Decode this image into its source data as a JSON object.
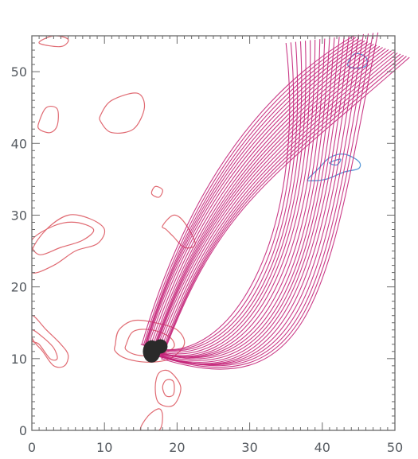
{
  "chart_data": {
    "type": "contour",
    "title": "",
    "xlabel": "",
    "ylabel": "",
    "xlim": [
      0,
      50
    ],
    "ylim": [
      0,
      55
    ],
    "grid": false,
    "x_ticks": [
      0,
      10,
      20,
      30,
      40,
      50
    ],
    "y_ticks": [
      0,
      10,
      20,
      30,
      40,
      50
    ],
    "colors": {
      "positive_contour": "#e06a72",
      "negative_contour": "#5a9ad8",
      "field_lines": "#c4267a",
      "footpoint": "#2a2a2a",
      "frame": "#6a6a6a"
    },
    "field_lines": {
      "count": 40,
      "footpoint": [
        16.5,
        11
      ],
      "bundle_a_apex": [
        35,
        54
      ],
      "bundle_b_apex": [
        52,
        52
      ],
      "crossing_near": [
        35,
        43
      ]
    },
    "positive_contours": [
      {
        "label": "left-lobe-outer",
        "points": [
          [
            0,
            25
          ],
          [
            2,
            28
          ],
          [
            5,
            30
          ],
          [
            8,
            29.5
          ],
          [
            10,
            28
          ],
          [
            9,
            26
          ],
          [
            6,
            25
          ],
          [
            3,
            23
          ],
          [
            0,
            22
          ]
        ]
      },
      {
        "label": "left-lobe-inner",
        "points": [
          [
            0,
            26.5
          ],
          [
            3,
            28.5
          ],
          [
            6,
            29
          ],
          [
            8.5,
            28
          ],
          [
            7,
            26.5
          ],
          [
            4,
            25.5
          ],
          [
            1,
            24.5
          ]
        ]
      },
      {
        "label": "small-patch-a",
        "points": [
          [
            1,
            43
          ],
          [
            2,
            45
          ],
          [
            3.5,
            44.8
          ],
          [
            3.5,
            42.5
          ],
          [
            2.5,
            41.5
          ],
          [
            1,
            42
          ]
        ]
      },
      {
        "label": "small-patch-b",
        "points": [
          [
            9.5,
            44
          ],
          [
            11,
            46
          ],
          [
            14.5,
            47
          ],
          [
            15.5,
            45
          ],
          [
            14,
            42
          ],
          [
            11,
            41.5
          ],
          [
            9.5,
            43
          ]
        ]
      },
      {
        "label": "small-patch-c",
        "points": [
          [
            16.5,
            33
          ],
          [
            17,
            34
          ],
          [
            18,
            33.5
          ],
          [
            17.5,
            32.5
          ]
        ]
      },
      {
        "label": "patch-d",
        "points": [
          [
            18,
            28.5
          ],
          [
            19.5,
            30
          ],
          [
            21,
            29
          ],
          [
            22.5,
            26
          ],
          [
            21,
            25.5
          ],
          [
            19.5,
            27
          ],
          [
            18.5,
            28
          ]
        ]
      },
      {
        "label": "lower-left-outer",
        "points": [
          [
            0,
            16
          ],
          [
            2,
            14
          ],
          [
            4,
            12
          ],
          [
            5,
            10.5
          ],
          [
            4.5,
            9
          ],
          [
            3,
            9
          ],
          [
            1.5,
            11
          ],
          [
            0,
            13
          ]
        ]
      },
      {
        "label": "lower-left-inner",
        "points": [
          [
            0,
            14
          ],
          [
            1.5,
            13
          ],
          [
            3,
            11.5
          ],
          [
            3.5,
            10
          ],
          [
            2.5,
            10
          ],
          [
            1,
            12
          ],
          [
            0,
            12.5
          ]
        ]
      },
      {
        "label": "source-ring-1",
        "points": [
          [
            11.5,
            12
          ],
          [
            12,
            14
          ],
          [
            14,
            15.3
          ],
          [
            17,
            15
          ],
          [
            20,
            14
          ],
          [
            21,
            12
          ],
          [
            19,
            10
          ],
          [
            16,
            9.5
          ],
          [
            13,
            10
          ],
          [
            11.5,
            11
          ]
        ]
      },
      {
        "label": "source-ring-2",
        "points": [
          [
            13,
            12
          ],
          [
            14,
            13.8
          ],
          [
            16.5,
            14
          ],
          [
            19,
            13
          ],
          [
            19.5,
            11.5
          ],
          [
            17,
            10.5
          ],
          [
            14.5,
            10.5
          ],
          [
            13,
            11.2
          ]
        ]
      },
      {
        "label": "lower-patch",
        "points": [
          [
            17,
            6
          ],
          [
            17.5,
            8
          ],
          [
            19,
            8.2
          ],
          [
            20.5,
            6
          ],
          [
            19.5,
            3.5
          ],
          [
            17.5,
            3.8
          ]
        ]
      },
      {
        "label": "lower-patch-inner",
        "points": [
          [
            18,
            6
          ],
          [
            18.5,
            7
          ],
          [
            19.5,
            6.8
          ],
          [
            19.5,
            5
          ],
          [
            18.5,
            4.8
          ]
        ]
      },
      {
        "label": "bottom-edge",
        "points": [
          [
            15,
            0
          ],
          [
            16,
            2
          ],
          [
            17.5,
            3
          ],
          [
            18,
            2
          ],
          [
            17.5,
            0
          ]
        ]
      },
      {
        "label": "top-edge",
        "points": [
          [
            1,
            54
          ],
          [
            3,
            55
          ],
          [
            5,
            54.5
          ],
          [
            4,
            53.5
          ]
        ]
      }
    ],
    "negative_contours": [
      {
        "label": "upper-right-blob",
        "points": [
          [
            43.5,
            51
          ],
          [
            44.5,
            52.5
          ],
          [
            46,
            52
          ],
          [
            46,
            50.8
          ],
          [
            44.5,
            50.5
          ]
        ]
      },
      {
        "label": "right-blob",
        "points": [
          [
            38,
            35
          ],
          [
            39.5,
            36.5
          ],
          [
            41,
            38
          ],
          [
            43,
            38.5
          ],
          [
            45,
            37.5
          ],
          [
            45,
            36.5
          ],
          [
            43,
            36
          ],
          [
            40.5,
            35
          ],
          [
            38.5,
            34.8
          ]
        ]
      },
      {
        "label": "right-blob-inner",
        "points": [
          [
            41,
            37.3
          ],
          [
            42.5,
            37.8
          ],
          [
            42,
            37
          ]
        ]
      }
    ]
  },
  "axes": {
    "x_tick_labels": [
      "0",
      "10",
      "20",
      "30",
      "40",
      "50"
    ],
    "y_tick_labels": [
      "0",
      "10",
      "20",
      "30",
      "40",
      "50"
    ]
  }
}
